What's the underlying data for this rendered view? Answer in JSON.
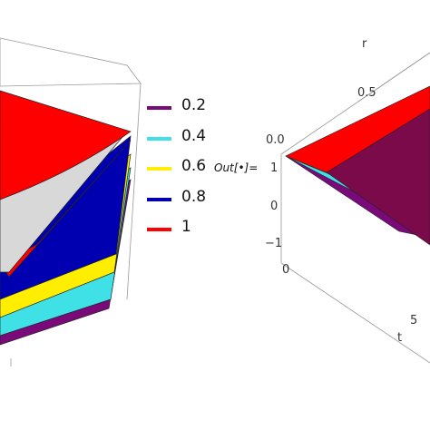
{
  "chart_data": [
    {
      "type": "area",
      "title": "",
      "series": [
        {
          "name": "0.2",
          "color": "#7a0a7a"
        },
        {
          "name": "0.4",
          "color": "#3fe0e6"
        },
        {
          "name": "0.6",
          "color": "#ffee00"
        },
        {
          "name": "0.8",
          "color": "#0000b0"
        },
        {
          "name": "1",
          "color": "#ff0000"
        }
      ],
      "legend": {
        "placement": "right",
        "items": [
          "0.2",
          "0.4",
          "0.6",
          "0.8",
          "1"
        ]
      }
    },
    {
      "type": "area",
      "title": "",
      "output_label": "Out[•]=",
      "axes": {
        "r": {
          "label": "r",
          "ticks": [
            "0.0",
            "0.5"
          ]
        },
        "t": {
          "label": "t",
          "ticks": [
            "0",
            "5"
          ]
        },
        "z": {
          "label": "",
          "ticks": [
            "1",
            "0",
            "−1"
          ]
        }
      }
    }
  ]
}
